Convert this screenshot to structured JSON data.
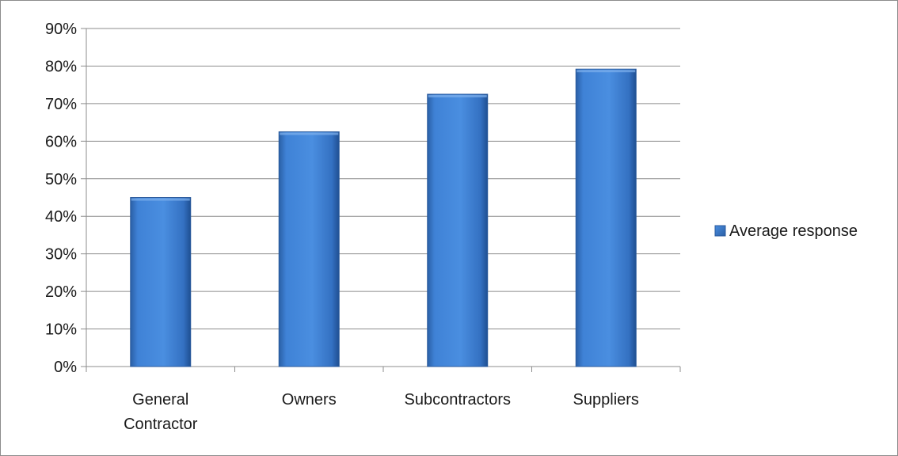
{
  "chart_data": {
    "type": "bar",
    "title": "",
    "xlabel": "",
    "ylabel": "",
    "categories": [
      [
        "General",
        "Contractor"
      ],
      [
        "Owners"
      ],
      [
        "Subcontractors"
      ],
      [
        "Suppliers"
      ]
    ],
    "series": [
      {
        "name": "Average response",
        "values": [
          45,
          62.5,
          72.5,
          79.2
        ],
        "color": "#3a78c9"
      }
    ],
    "ylim": [
      0,
      90
    ],
    "ytick_step": 10,
    "ytick_format": "percent",
    "yticks": [
      "0%",
      "10%",
      "20%",
      "30%",
      "40%",
      "50%",
      "60%",
      "70%",
      "80%",
      "90%"
    ],
    "grid": true,
    "legend": "right"
  }
}
